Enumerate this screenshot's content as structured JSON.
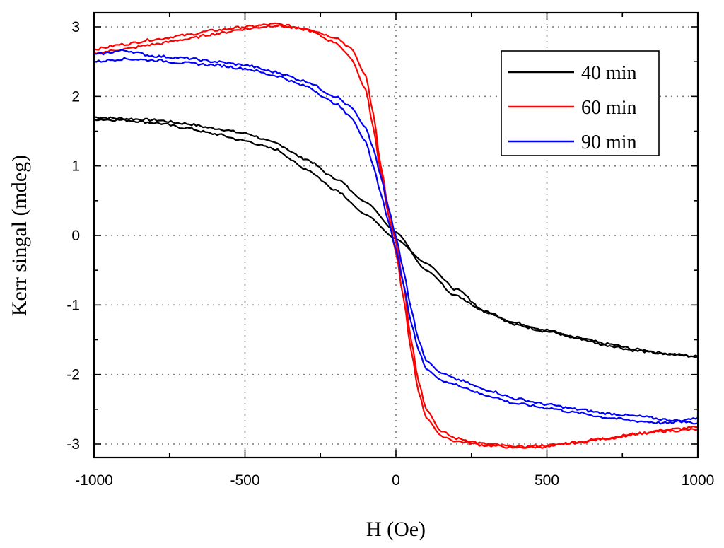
{
  "chart_data": {
    "type": "line",
    "title": "",
    "xlabel": "H (Oe)",
    "ylabel": "Kerr singal (mdeg)",
    "xlim": [
      -1000,
      1000
    ],
    "ylim": [
      -3.2,
      3.2
    ],
    "xticks": [
      -1000,
      -500,
      0,
      500,
      1000
    ],
    "yticks": [
      -3,
      -2,
      -1,
      0,
      1,
      2,
      3
    ],
    "xtick_labels": [
      "-1000",
      "-500",
      "0",
      "500",
      "1000"
    ],
    "ytick_labels": [
      "-3",
      "-2",
      "-1",
      "0",
      "1",
      "2",
      "3"
    ],
    "grid": true,
    "legend_position": "top-right",
    "series": [
      {
        "name": "40 min",
        "color": "#000000",
        "x": [
          -1000,
          -900,
          -800,
          -700,
          -600,
          -500,
          -400,
          -300,
          -200,
          -100,
          0,
          100,
          200,
          300,
          400,
          500,
          600,
          700,
          800,
          900,
          1000
        ],
        "branch_down": [
          1.7,
          1.68,
          1.66,
          1.61,
          1.54,
          1.47,
          1.33,
          1.1,
          0.82,
          0.48,
          0.05,
          -0.5,
          -0.87,
          -1.1,
          -1.29,
          -1.38,
          -1.47,
          -1.56,
          -1.64,
          -1.7,
          -1.74
        ],
        "branch_up": [
          1.67,
          1.66,
          1.62,
          1.55,
          1.46,
          1.36,
          1.24,
          0.96,
          0.66,
          0.3,
          -0.05,
          -0.4,
          -0.78,
          -1.1,
          -1.26,
          -1.36,
          -1.48,
          -1.58,
          -1.66,
          -1.71,
          -1.74
        ]
      },
      {
        "name": "60 min",
        "color": "#ff0000",
        "x": [
          -1000,
          -900,
          -800,
          -700,
          -600,
          -500,
          -400,
          -300,
          -200,
          -150,
          -100,
          -75,
          -50,
          -25,
          0,
          25,
          50,
          75,
          100,
          150,
          200,
          300,
          400,
          500,
          600,
          700,
          800,
          900,
          1000
        ],
        "branch_down": [
          2.68,
          2.75,
          2.82,
          2.88,
          2.95,
          3.0,
          3.04,
          2.98,
          2.85,
          2.7,
          2.3,
          1.75,
          1.0,
          0.4,
          -0.1,
          -0.7,
          -1.5,
          -2.1,
          -2.5,
          -2.82,
          -2.92,
          -3.0,
          -3.04,
          -3.02,
          -2.97,
          -2.91,
          -2.85,
          -2.79,
          -2.76
        ],
        "branch_up": [
          2.62,
          2.68,
          2.75,
          2.82,
          2.9,
          2.97,
          3.02,
          2.96,
          2.78,
          2.55,
          2.1,
          1.55,
          0.9,
          0.3,
          -0.25,
          -0.9,
          -1.65,
          -2.25,
          -2.62,
          -2.88,
          -2.96,
          -3.02,
          -3.05,
          -3.04,
          -2.98,
          -2.92,
          -2.86,
          -2.81,
          -2.79
        ]
      },
      {
        "name": "90 min",
        "color": "#0000ff",
        "x": [
          -1000,
          -900,
          -800,
          -700,
          -600,
          -500,
          -400,
          -300,
          -200,
          -150,
          -100,
          -75,
          -50,
          -25,
          0,
          25,
          50,
          75,
          100,
          150,
          200,
          300,
          400,
          500,
          600,
          700,
          800,
          900,
          1000
        ],
        "branch_down": [
          2.6,
          2.66,
          2.58,
          2.55,
          2.5,
          2.45,
          2.35,
          2.22,
          2.0,
          1.85,
          1.55,
          1.25,
          0.85,
          0.4,
          -0.02,
          -0.5,
          -1.05,
          -1.5,
          -1.8,
          -1.98,
          -2.07,
          -2.22,
          -2.35,
          -2.43,
          -2.5,
          -2.56,
          -2.6,
          -2.65,
          -2.7
        ],
        "branch_up": [
          2.5,
          2.54,
          2.52,
          2.48,
          2.45,
          2.4,
          2.3,
          2.15,
          1.9,
          1.7,
          1.35,
          1.0,
          0.6,
          0.2,
          -0.2,
          -0.7,
          -1.25,
          -1.65,
          -1.92,
          -2.08,
          -2.15,
          -2.3,
          -2.42,
          -2.48,
          -2.55,
          -2.62,
          -2.67,
          -2.7,
          -2.62
        ]
      }
    ]
  }
}
